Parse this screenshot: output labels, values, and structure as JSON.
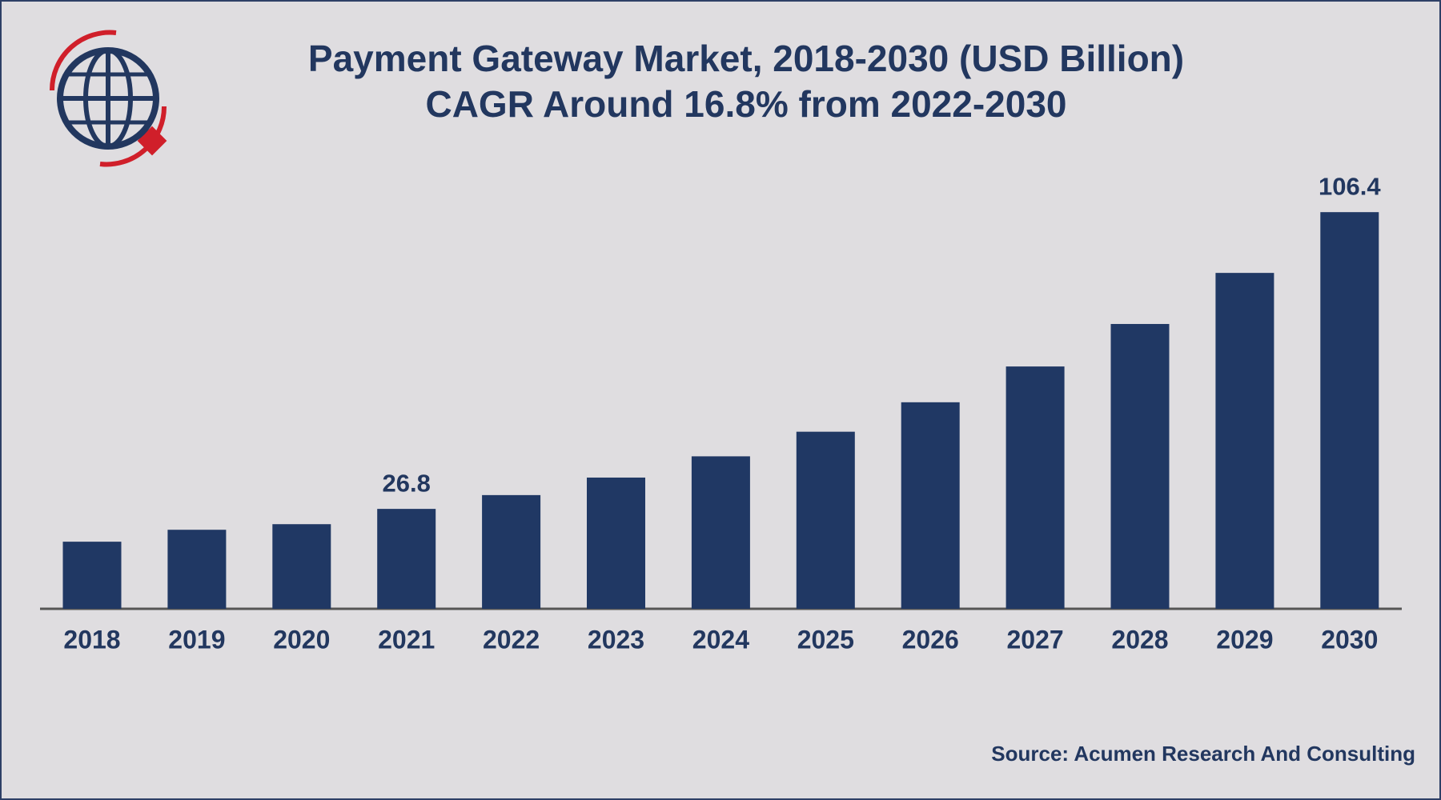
{
  "chart_data": {
    "type": "bar",
    "title": "Payment Gateway Market, 2018-2030 (USD Billion)",
    "subtitle": "CAGR Around 16.8% from 2022-2030",
    "categories": [
      "2018",
      "2019",
      "2020",
      "2021",
      "2022",
      "2023",
      "2024",
      "2025",
      "2026",
      "2027",
      "2028",
      "2029",
      "2030"
    ],
    "values": [
      18.0,
      21.2,
      22.7,
      26.8,
      30.5,
      35.2,
      40.9,
      47.5,
      55.4,
      65.0,
      76.4,
      90.1,
      106.4
    ],
    "value_labels": [
      null,
      null,
      null,
      "26.8",
      null,
      null,
      null,
      null,
      null,
      null,
      null,
      null,
      "106.4"
    ],
    "color": "#203864",
    "source": "Source: Acumen Research And Consulting"
  }
}
